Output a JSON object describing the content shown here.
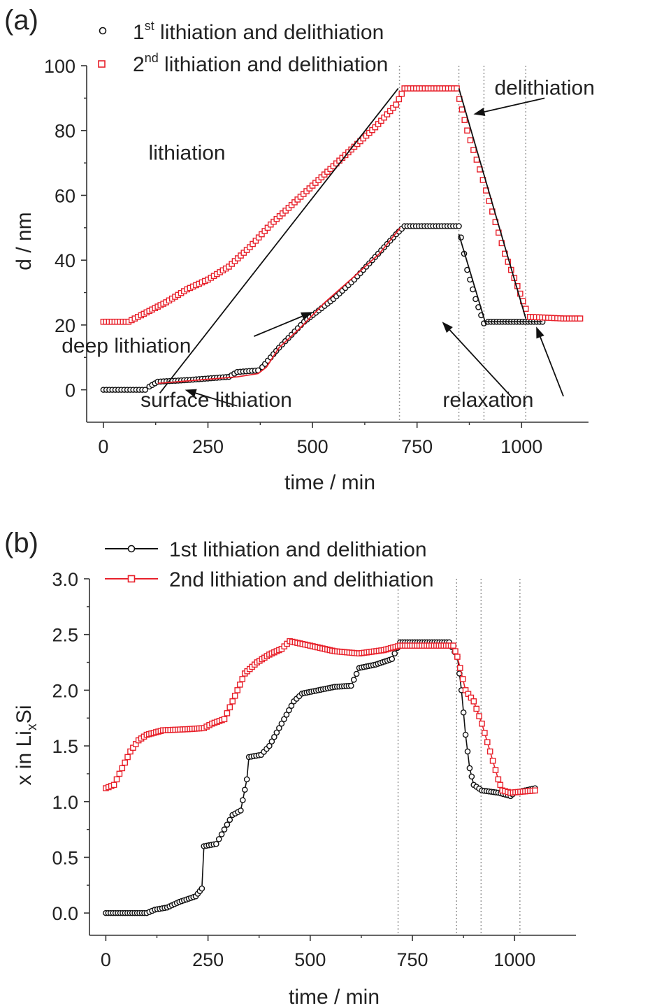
{
  "colors": {
    "series1": "#111111",
    "series2": "#e8212b",
    "axis": "#333333",
    "guide": "#999999"
  },
  "chart_data": [
    {
      "panel_label": "(a)",
      "type": "scatter",
      "xlabel": "time / min",
      "ylabel": "d / nm",
      "xlim": [
        -40,
        1160
      ],
      "ylim": [
        -10,
        100
      ],
      "xticks": [
        0,
        250,
        500,
        750,
        1000
      ],
      "yticks": [
        0,
        20,
        40,
        60,
        80,
        100
      ],
      "xtick_labels": [
        "0",
        "250",
        "500",
        "750",
        "1000"
      ],
      "ytick_labels": [
        "0",
        "20",
        "40",
        "60",
        "80",
        "100"
      ],
      "legend": [
        {
          "base": "1",
          "sup": "st",
          "text": " lithiation and delithiation"
        },
        {
          "base": "2",
          "sup": "nd",
          "text": " lithiation and delithiation"
        }
      ],
      "vlines": [
        708,
        850,
        910,
        1010
      ],
      "series": [
        {
          "name": "1st lithiation and delithiation",
          "marker": "circle",
          "points": [
            [
              0,
              0
            ],
            [
              100,
              0
            ],
            [
              110,
              1
            ],
            [
              130,
              2.5
            ],
            [
              200,
              3
            ],
            [
              300,
              4
            ],
            [
              320,
              5.5
            ],
            [
              370,
              6
            ],
            [
              380,
              7
            ],
            [
              420,
              13
            ],
            [
              450,
              17
            ],
            [
              480,
              21
            ],
            [
              550,
              28
            ],
            [
              600,
              34
            ],
            [
              650,
              41
            ],
            [
              700,
              48
            ],
            [
              720,
              50.5
            ],
            [
              850,
              50.5
            ],
            [
              855,
              47
            ],
            [
              870,
              37
            ],
            [
              890,
              28
            ],
            [
              910,
              20.5
            ],
            [
              920,
              21
            ],
            [
              1050,
              21
            ]
          ]
        },
        {
          "name": "2nd lithiation and delithiation",
          "marker": "square",
          "points": [
            [
              0,
              21
            ],
            [
              60,
              21
            ],
            [
              90,
              23
            ],
            [
              150,
              27
            ],
            [
              200,
              31
            ],
            [
              250,
              34
            ],
            [
              300,
              38
            ],
            [
              350,
              44
            ],
            [
              400,
              51
            ],
            [
              450,
              57
            ],
            [
              500,
              63
            ],
            [
              550,
              69
            ],
            [
              600,
              75
            ],
            [
              650,
              81
            ],
            [
              700,
              88
            ],
            [
              720,
              93
            ],
            [
              845,
              93
            ],
            [
              870,
              80
            ],
            [
              900,
              68
            ],
            [
              930,
              55
            ],
            [
              960,
              42
            ],
            [
              990,
              32
            ],
            [
              1010,
              25
            ],
            [
              1020,
              22.5
            ],
            [
              1100,
              22
            ],
            [
              1140,
              22
            ]
          ]
        }
      ],
      "fit_lines": [
        {
          "color_key": "series1",
          "points": [
            [
              135,
              -1
            ],
            [
              705,
              93
            ]
          ]
        },
        {
          "color_key": "series1",
          "points": [
            [
              850,
              93
            ],
            [
              1010,
              22
            ]
          ]
        },
        {
          "color_key": "series1",
          "points": [
            [
              850,
              48
            ],
            [
              915,
              20
            ]
          ]
        },
        {
          "color_key": "series1",
          "points": [
            [
              910,
              21
            ],
            [
              1050,
              21
            ]
          ]
        },
        {
          "color_key": "series2",
          "points": [
            [
              130,
              2
            ],
            [
              320,
              4
            ],
            [
              370,
              5
            ],
            [
              390,
              7
            ],
            [
              420,
              13
            ],
            [
              470,
              19
            ],
            [
              530,
              27
            ],
            [
              600,
              35
            ],
            [
              660,
              42
            ],
            [
              710,
              50
            ]
          ]
        }
      ],
      "annotations": [
        {
          "text": "lithiation",
          "x": 200,
          "y": 71
        },
        {
          "text": "delithiation",
          "x": 1055,
          "y": 91
        },
        {
          "text": "deep lithiation",
          "x": 55,
          "y": 11.5
        },
        {
          "text": "surface lithiation",
          "x": 270,
          "y": -5.3
        },
        {
          "text": "relaxation",
          "x": 920,
          "y": -5.3
        }
      ],
      "arrows": [
        {
          "from": [
            1055,
            90
          ],
          "to": [
            885,
            85
          ]
        },
        {
          "from": [
            360,
            16.5
          ],
          "to": [
            500,
            24
          ]
        },
        {
          "from": [
            320,
            -5
          ],
          "to": [
            195,
            0
          ]
        },
        {
          "from": [
            1100,
            -2
          ],
          "to": [
            1035,
            19.5
          ]
        },
        {
          "from": [
            978,
            -2.5
          ],
          "to": [
            810,
            21
          ]
        }
      ]
    },
    {
      "panel_label": "(b)",
      "type": "line",
      "xlabel": "time / min",
      "ylabel_main": "x in Li",
      "ylabel_sub": "x",
      "ylabel_tail": "Si",
      "xlim": [
        -40,
        1150
      ],
      "ylim": [
        -0.2,
        3.0
      ],
      "xticks": [
        0,
        250,
        500,
        750,
        1000
      ],
      "yticks": [
        0.0,
        0.5,
        1.0,
        1.5,
        2.0,
        2.5,
        3.0
      ],
      "xtick_labels": [
        "0",
        "250",
        "500",
        "750",
        "1000"
      ],
      "ytick_labels": [
        "0.0",
        "0.5",
        "1.0",
        "1.5",
        "2.0",
        "2.5",
        "3.0"
      ],
      "legend": [
        {
          "base": "1st lithiation and delithiation",
          "sup": "",
          "text": ""
        },
        {
          "base": "2nd lithiation and delithiation",
          "sup": "",
          "text": ""
        }
      ],
      "vlines": [
        715,
        858,
        918,
        1013
      ],
      "series": [
        {
          "name": "1st lithiation and delithiation",
          "marker": "circle",
          "points": [
            [
              0,
              0
            ],
            [
              100,
              0
            ],
            [
              120,
              0.03
            ],
            [
              150,
              0.05
            ],
            [
              180,
              0.1
            ],
            [
              220,
              0.15
            ],
            [
              235,
              0.22
            ],
            [
              240,
              0.6
            ],
            [
              270,
              0.62
            ],
            [
              290,
              0.75
            ],
            [
              310,
              0.88
            ],
            [
              330,
              0.92
            ],
            [
              345,
              1.2
            ],
            [
              350,
              1.4
            ],
            [
              380,
              1.42
            ],
            [
              400,
              1.5
            ],
            [
              430,
              1.7
            ],
            [
              460,
              1.9
            ],
            [
              480,
              1.97
            ],
            [
              520,
              2.0
            ],
            [
              560,
              2.03
            ],
            [
              600,
              2.04
            ],
            [
              620,
              2.2
            ],
            [
              660,
              2.23
            ],
            [
              700,
              2.28
            ],
            [
              720,
              2.43
            ],
            [
              840,
              2.43
            ],
            [
              860,
              2.3
            ],
            [
              870,
              2.0
            ],
            [
              880,
              1.6
            ],
            [
              890,
              1.3
            ],
            [
              900,
              1.15
            ],
            [
              920,
              1.1
            ],
            [
              960,
              1.08
            ],
            [
              990,
              1.05
            ],
            [
              1000,
              1.08
            ],
            [
              1050,
              1.12
            ]
          ]
        },
        {
          "name": "2nd lithiation and delithiation",
          "marker": "square",
          "points": [
            [
              0,
              1.12
            ],
            [
              20,
              1.15
            ],
            [
              40,
              1.3
            ],
            [
              60,
              1.45
            ],
            [
              80,
              1.55
            ],
            [
              100,
              1.6
            ],
            [
              140,
              1.64
            ],
            [
              200,
              1.65
            ],
            [
              240,
              1.66
            ],
            [
              260,
              1.7
            ],
            [
              290,
              1.74
            ],
            [
              310,
              1.9
            ],
            [
              340,
              2.15
            ],
            [
              370,
              2.25
            ],
            [
              400,
              2.32
            ],
            [
              430,
              2.37
            ],
            [
              450,
              2.44
            ],
            [
              500,
              2.4
            ],
            [
              560,
              2.35
            ],
            [
              620,
              2.33
            ],
            [
              680,
              2.36
            ],
            [
              720,
              2.4
            ],
            [
              850,
              2.4
            ],
            [
              860,
              2.3
            ],
            [
              880,
              2.0
            ],
            [
              900,
              1.9
            ],
            [
              920,
              1.7
            ],
            [
              940,
              1.45
            ],
            [
              960,
              1.2
            ],
            [
              970,
              1.1
            ],
            [
              990,
              1.08
            ],
            [
              1050,
              1.1
            ]
          ]
        }
      ]
    }
  ]
}
